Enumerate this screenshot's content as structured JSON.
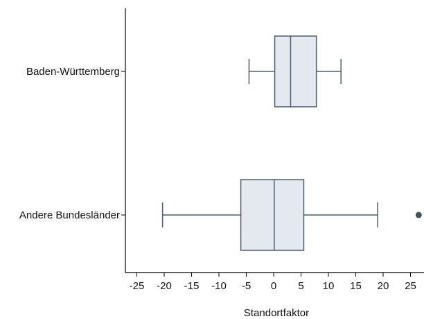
{
  "chart_data": {
    "type": "boxplot",
    "orientation": "horizontal",
    "xlabel": "Standortfaktor",
    "xlim": [
      -27,
      27
    ],
    "xticks": [
      -25,
      -20,
      -15,
      -10,
      -5,
      0,
      5,
      10,
      15,
      20,
      25
    ],
    "grid": false,
    "colors": {
      "box_fill": "#e3e9ef",
      "box_stroke": "#4a5e6e",
      "outlier": "#3f5566"
    },
    "categories": [
      "Baden-Württemberg",
      "Andere Bundesländer"
    ],
    "series": [
      {
        "category": "Baden-Württemberg",
        "whisker_low": -4.5,
        "q1": 0.2,
        "median": 3.1,
        "q3": 7.8,
        "whisker_high": 12.3,
        "outliers": []
      },
      {
        "category": "Andere Bundesländer",
        "whisker_low": -20.3,
        "q1": -6.0,
        "median": 0.1,
        "q3": 5.5,
        "whisker_high": 19.0,
        "outliers": [
          26.5
        ]
      }
    ]
  }
}
